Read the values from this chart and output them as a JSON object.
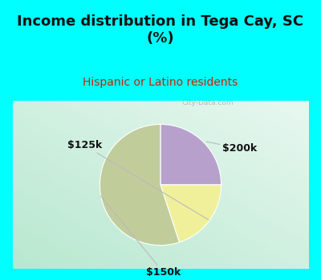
{
  "title": "Income distribution in Tega Cay, SC\n(%)",
  "subtitle": "Hispanic or Latino residents",
  "title_color": "#111111",
  "subtitle_color": "#cc2200",
  "top_bg_color": "#00FFFF",
  "chart_bg_left": "#b8e8d0",
  "chart_bg_right": "#e8f8f0",
  "slices": [
    {
      "label": "$200k",
      "value": 25,
      "color": "#b8a0cc"
    },
    {
      "label": "$125k",
      "value": 20,
      "color": "#f0f09a"
    },
    {
      "label": "$150k",
      "value": 55,
      "color": "#c0cc9a"
    }
  ],
  "startangle": 90,
  "counterclock": false,
  "watermark": "City-Data.com",
  "label_fontsize": 9,
  "title_fontsize": 13,
  "subtitle_fontsize": 10
}
